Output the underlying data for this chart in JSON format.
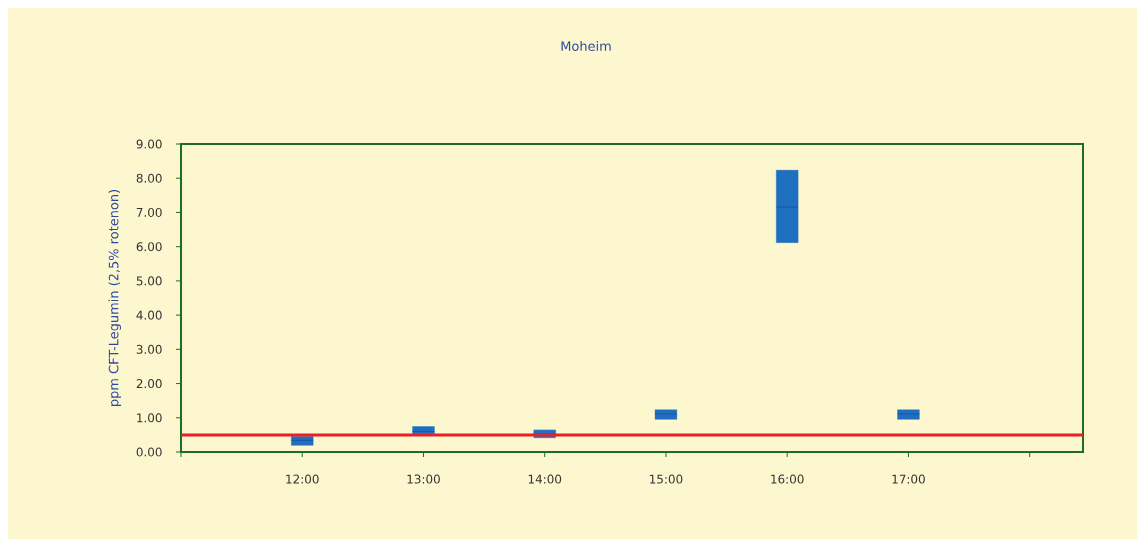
{
  "chart_data": {
    "type": "box",
    "title": "Moheim",
    "ylabel": "ppm CFT-Legumin (2,5% rotenon)",
    "x": [
      12,
      13,
      14,
      15,
      16,
      17
    ],
    "xlim": [
      11,
      18.44
    ],
    "xticks": [
      {
        "value": 11,
        "label": null
      },
      {
        "value": 12,
        "label": "12:00"
      },
      {
        "value": 13,
        "label": "13:00"
      },
      {
        "value": 14,
        "label": "14:00"
      },
      {
        "value": 15,
        "label": "15:00"
      },
      {
        "value": 16,
        "label": "16:00"
      },
      {
        "value": 17,
        "label": "17:00"
      },
      {
        "value": 18,
        "label": null
      }
    ],
    "ylim": [
      0,
      9
    ],
    "yticks": [
      {
        "value": 0,
        "label": "0.00"
      },
      {
        "value": 1,
        "label": "1.00"
      },
      {
        "value": 2,
        "label": "2.00"
      },
      {
        "value": 3,
        "label": "3.00"
      },
      {
        "value": 4,
        "label": "4.00"
      },
      {
        "value": 5,
        "label": "5.00"
      },
      {
        "value": 6,
        "label": "6.00"
      },
      {
        "value": 7,
        "label": "7.00"
      },
      {
        "value": 8,
        "label": "8.00"
      },
      {
        "value": 9,
        "label": "9.00"
      }
    ],
    "color": "#1f6fc0",
    "boxes": [
      {
        "low": 0.2,
        "q1": 0.2,
        "median": 0.34,
        "q3": 0.45,
        "high": 0.45
      },
      {
        "low": 0.53,
        "q1": 0.53,
        "median": 0.6,
        "q3": 0.74,
        "high": 0.74
      },
      {
        "low": 0.42,
        "q1": 0.42,
        "median": 0.53,
        "q3": 0.64,
        "high": 0.64
      },
      {
        "low": 0.96,
        "q1": 0.96,
        "median": 1.11,
        "q3": 1.23,
        "high": 1.23
      },
      {
        "low": 6.12,
        "q1": 6.12,
        "median": 7.16,
        "q3": 8.23,
        "high": 8.23
      },
      {
        "low": 0.96,
        "q1": 0.96,
        "median": 1.11,
        "q3": 1.23,
        "high": 1.23
      }
    ],
    "ref_lines": [
      {
        "axis": "y",
        "value": 0.5,
        "color": "#e8202a"
      }
    ],
    "grid": false
  }
}
